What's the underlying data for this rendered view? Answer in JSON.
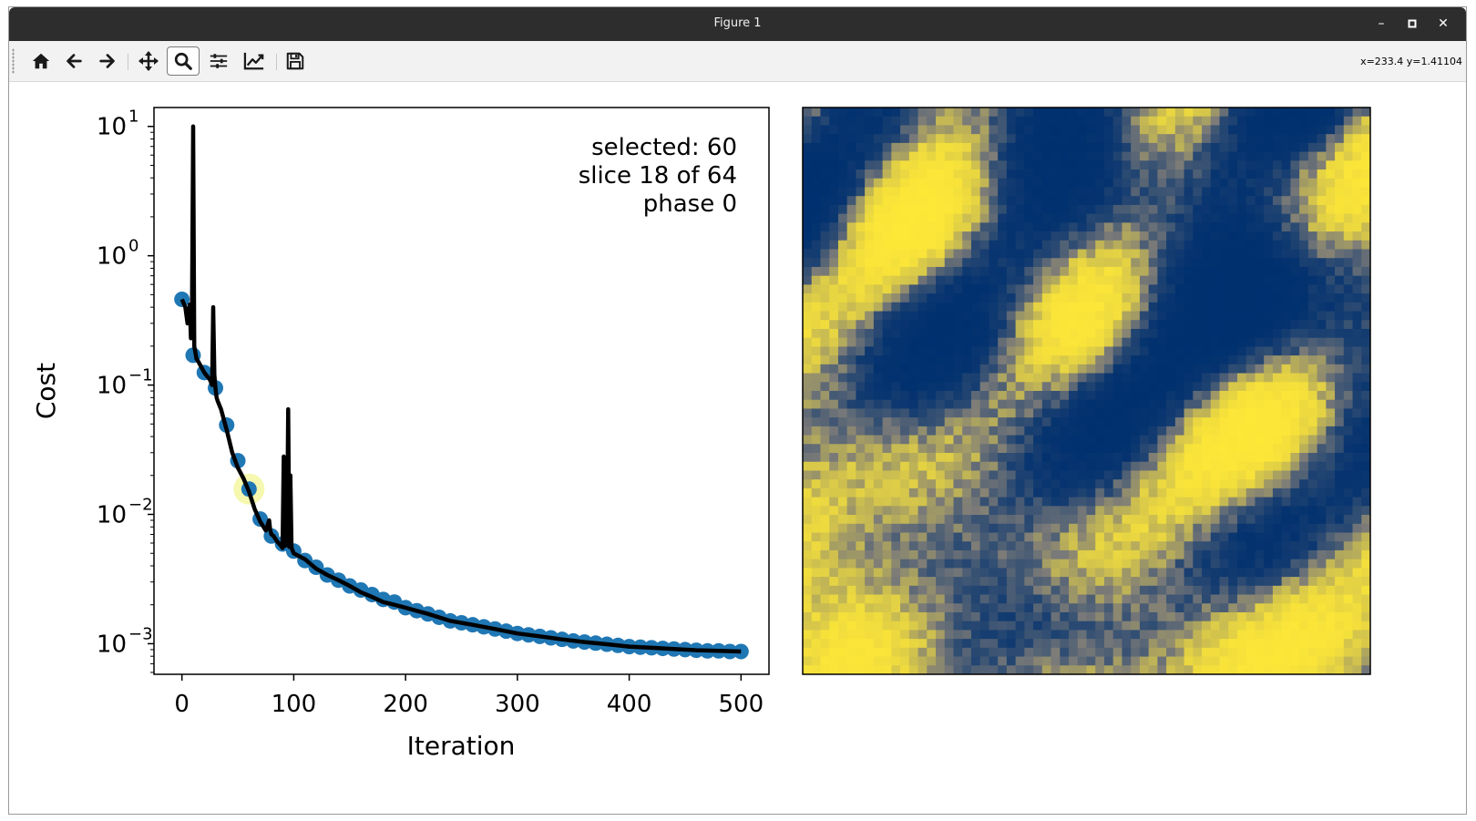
{
  "window": {
    "title": "Figure 1",
    "controls": {
      "minimize": "–",
      "maximize": "◻",
      "close": "✕"
    }
  },
  "toolbar": {
    "buttons": [
      {
        "name": "home-button",
        "icon": "home-icon"
      },
      {
        "name": "back-button",
        "icon": "arrow-left-icon"
      },
      {
        "name": "forward-button",
        "icon": "arrow-right-icon"
      },
      {
        "name": "pan-button",
        "icon": "move-icon"
      },
      {
        "name": "zoom-button",
        "icon": "magnifier-icon",
        "active": true
      },
      {
        "name": "configure-subplots-button",
        "icon": "sliders-icon"
      },
      {
        "name": "edit-axis-button",
        "icon": "line-chart-icon"
      },
      {
        "name": "save-button",
        "icon": "floppy-disk-icon"
      }
    ],
    "coordinates": "x=233.4 y=1.41104"
  },
  "colors": {
    "marker": "#1f77b4",
    "line": "#000000",
    "highlight": "#ecf26b",
    "map_low": "#00306f",
    "map_mid": "#7c7b78",
    "map_high": "#fde737"
  },
  "annotation": {
    "selected": "selected: 60",
    "slice": "slice 18 of 64",
    "phase": "phase 0"
  },
  "chart_data": [
    {
      "type": "line",
      "xlabel": "Iteration",
      "ylabel": "Cost",
      "yscale": "log",
      "xlim": [
        -25,
        525
      ],
      "ylim": [
        0.00058,
        14
      ],
      "x_ticks": [
        {
          "value": 0,
          "label": "0"
        },
        {
          "value": 100,
          "label": "100"
        },
        {
          "value": 200,
          "label": "200"
        },
        {
          "value": 300,
          "label": "300"
        },
        {
          "value": 400,
          "label": "400"
        },
        {
          "value": 500,
          "label": "500"
        }
      ],
      "y_ticks": [
        {
          "value": 10,
          "base": "10",
          "exp": "1"
        },
        {
          "value": 1,
          "base": "10",
          "exp": "0"
        },
        {
          "value": 0.1,
          "base": "10",
          "exp": "−1"
        },
        {
          "value": 0.01,
          "base": "10",
          "exp": "−2"
        },
        {
          "value": 0.001,
          "base": "10",
          "exp": "−3"
        }
      ],
      "grid": false,
      "selected_point": {
        "x": 60,
        "y": 0.0157
      },
      "series": [
        {
          "style": "markers",
          "x": [
            0,
            10,
            20,
            30,
            40,
            50,
            60,
            70,
            80,
            90,
            100,
            110,
            120,
            130,
            140,
            150,
            160,
            170,
            180,
            190,
            200,
            210,
            220,
            230,
            240,
            250,
            260,
            270,
            280,
            290,
            300,
            310,
            320,
            330,
            340,
            350,
            360,
            370,
            380,
            390,
            400,
            410,
            420,
            430,
            440,
            450,
            460,
            470,
            480,
            490,
            500
          ],
          "y": [
            0.46,
            0.17,
            0.125,
            0.095,
            0.049,
            0.026,
            0.0157,
            0.0092,
            0.0068,
            0.0059,
            0.0052,
            0.0044,
            0.0039,
            0.0034,
            0.0031,
            0.0028,
            0.0026,
            0.0024,
            0.0022,
            0.0021,
            0.0019,
            0.0018,
            0.0017,
            0.0016,
            0.0015,
            0.00145,
            0.0014,
            0.00135,
            0.0013,
            0.00125,
            0.0012,
            0.00117,
            0.00114,
            0.00111,
            0.00108,
            0.00105,
            0.00103,
            0.00101,
            0.00099,
            0.00097,
            0.00095,
            0.00094,
            0.00093,
            0.00092,
            0.00091,
            0.0009,
            0.00089,
            0.00088,
            0.00088,
            0.00087,
            0.00087
          ]
        },
        {
          "style": "line",
          "x": [
            0,
            3,
            5,
            7,
            8,
            9,
            10,
            11,
            12,
            13,
            15,
            20,
            25,
            27,
            28,
            29,
            30,
            31,
            32,
            35,
            40,
            45,
            50,
            55,
            60,
            65,
            70,
            75,
            78,
            79,
            80,
            82,
            85,
            88,
            90,
            91,
            92,
            93,
            94,
            95,
            96,
            97,
            98,
            100,
            110,
            120,
            130,
            140,
            150,
            160,
            170,
            180,
            190,
            200,
            220,
            240,
            260,
            280,
            300,
            320,
            340,
            360,
            380,
            400,
            420,
            440,
            460,
            480,
            500
          ],
          "y": [
            0.46,
            0.4,
            0.3,
            0.42,
            0.23,
            0.35,
            10,
            0.2,
            0.18,
            0.16,
            0.15,
            0.125,
            0.11,
            0.1,
            0.4,
            0.12,
            0.095,
            0.08,
            0.075,
            0.065,
            0.045,
            0.03,
            0.023,
            0.019,
            0.015,
            0.011,
            0.0088,
            0.0075,
            0.009,
            0.0075,
            0.007,
            0.0068,
            0.0062,
            0.0058,
            0.0055,
            0.028,
            0.0057,
            0.012,
            0.0058,
            0.065,
            0.0056,
            0.02,
            0.0055,
            0.005,
            0.0045,
            0.0038,
            0.0034,
            0.0031,
            0.0028,
            0.0025,
            0.0023,
            0.0021,
            0.002,
            0.0019,
            0.0017,
            0.0015,
            0.0014,
            0.0013,
            0.0012,
            0.00114,
            0.00108,
            0.00103,
            0.00099,
            0.00095,
            0.00093,
            0.00091,
            0.00089,
            0.00088,
            0.00087
          ]
        }
      ]
    },
    {
      "type": "heatmap",
      "grid_size": 64,
      "colormap": "cividis",
      "axes_visible": false
    }
  ]
}
